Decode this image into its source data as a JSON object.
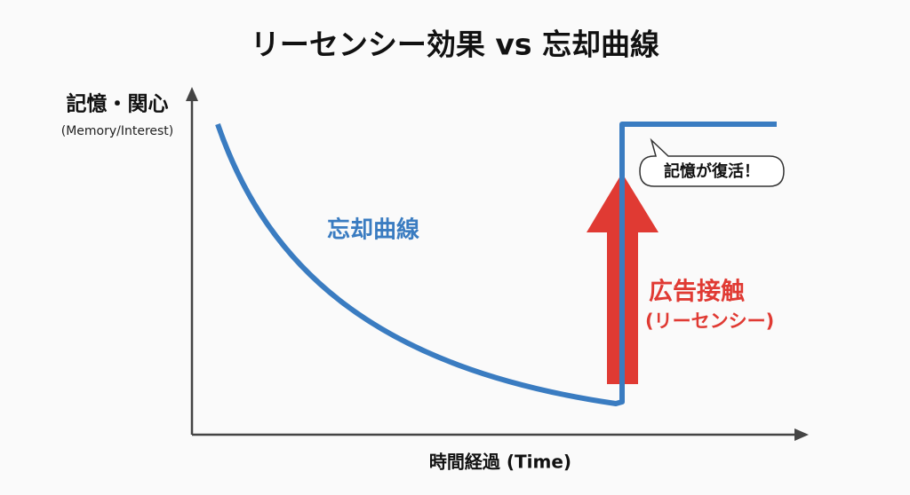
{
  "title": "リーセンシー効果 vs 忘却曲線",
  "y_axis": {
    "label": "記憶・関心",
    "sublabel": "(Memory/Interest)"
  },
  "x_axis": {
    "label": "時間経過 (Time)"
  },
  "curve_label": "忘却曲線",
  "arrow_label": {
    "line1": "広告接触",
    "line2": "(リーセンシー)"
  },
  "callout": "記憶が復活！"
}
